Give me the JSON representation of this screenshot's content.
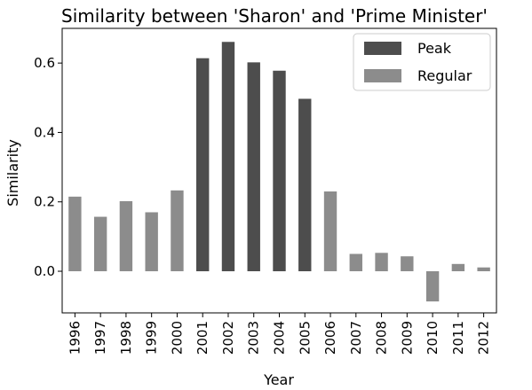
{
  "chart_data": {
    "type": "bar",
    "title": "Similarity between 'Sharon' and 'Prime Minister'",
    "xlabel": "Year",
    "ylabel": "Similarity",
    "categories": [
      "1996",
      "1997",
      "1998",
      "1999",
      "2000",
      "2001",
      "2002",
      "2003",
      "2004",
      "2005",
      "2006",
      "2007",
      "2008",
      "2009",
      "2010",
      "2011",
      "2012"
    ],
    "values": [
      0.215,
      0.157,
      0.202,
      0.17,
      0.233,
      0.614,
      0.661,
      0.602,
      0.578,
      0.497,
      0.23,
      0.05,
      0.053,
      0.043,
      -0.087,
      0.021,
      0.011
    ],
    "groups": [
      "Regular",
      "Regular",
      "Regular",
      "Regular",
      "Regular",
      "Peak",
      "Peak",
      "Peak",
      "Peak",
      "Peak",
      "Regular",
      "Regular",
      "Regular",
      "Regular",
      "Regular",
      "Regular",
      "Regular"
    ],
    "series": [
      {
        "name": "Peak",
        "color": "#4d4d4d"
      },
      {
        "name": "Regular",
        "color": "#8c8c8c"
      }
    ],
    "ylim": [
      -0.12,
      0.7
    ],
    "yticks": [
      0.0,
      0.2,
      0.4,
      0.6
    ],
    "ytick_labels": [
      "0.0",
      "0.2",
      "0.4",
      "0.6"
    ],
    "legend": "top-right",
    "grid": false
  }
}
